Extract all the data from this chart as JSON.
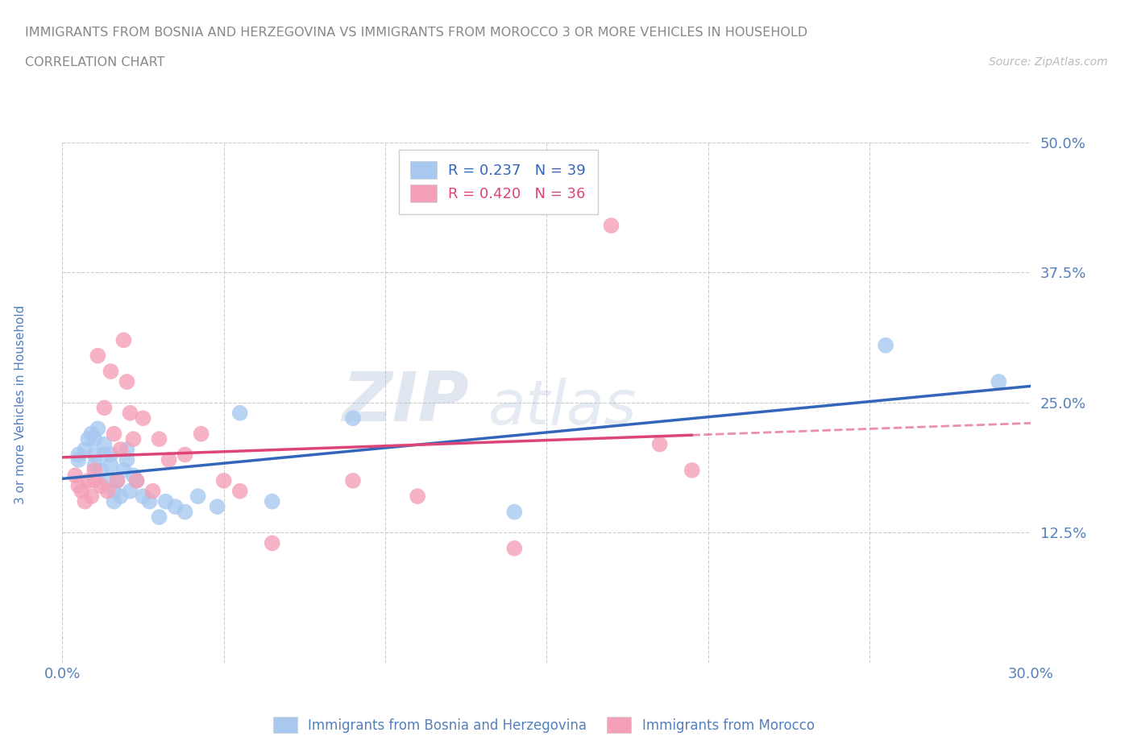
{
  "title_line1": "IMMIGRANTS FROM BOSNIA AND HERZEGOVINA VS IMMIGRANTS FROM MOROCCO 3 OR MORE VEHICLES IN HOUSEHOLD",
  "title_line2": "CORRELATION CHART",
  "source_text": "Source: ZipAtlas.com",
  "ylabel": "3 or more Vehicles in Household",
  "xlim": [
    0.0,
    0.3
  ],
  "ylim": [
    0.0,
    0.5
  ],
  "xticks": [
    0.0,
    0.05,
    0.1,
    0.15,
    0.2,
    0.25,
    0.3
  ],
  "xticklabels": [
    "0.0%",
    "",
    "",
    "",
    "",
    "",
    "30.0%"
  ],
  "yticks": [
    0.0,
    0.125,
    0.25,
    0.375,
    0.5
  ],
  "yticklabels": [
    "",
    "12.5%",
    "25.0%",
    "37.5%",
    "50.0%"
  ],
  "blue_color": "#A8C8F0",
  "pink_color": "#F4A0B8",
  "blue_line_color": "#3366BB",
  "pink_line_color": "#DD4477",
  "legend_R_blue": "R = 0.237",
  "legend_N_blue": "N = 39",
  "legend_R_pink": "R = 0.420",
  "legend_N_pink": "N = 36",
  "watermark_left": "ZIP",
  "watermark_right": "atlas",
  "blue_scatter_x": [
    0.005,
    0.005,
    0.007,
    0.008,
    0.009,
    0.01,
    0.01,
    0.01,
    0.011,
    0.012,
    0.013,
    0.013,
    0.014,
    0.015,
    0.015,
    0.016,
    0.016,
    0.017,
    0.018,
    0.019,
    0.02,
    0.02,
    0.021,
    0.022,
    0.023,
    0.025,
    0.027,
    0.03,
    0.032,
    0.035,
    0.038,
    0.042,
    0.048,
    0.055,
    0.065,
    0.09,
    0.14,
    0.255,
    0.29
  ],
  "blue_scatter_y": [
    0.2,
    0.195,
    0.205,
    0.215,
    0.22,
    0.19,
    0.2,
    0.215,
    0.225,
    0.185,
    0.2,
    0.21,
    0.175,
    0.19,
    0.2,
    0.155,
    0.165,
    0.175,
    0.16,
    0.185,
    0.195,
    0.205,
    0.165,
    0.18,
    0.175,
    0.16,
    0.155,
    0.14,
    0.155,
    0.15,
    0.145,
    0.16,
    0.15,
    0.24,
    0.155,
    0.235,
    0.145,
    0.305,
    0.27
  ],
  "pink_scatter_x": [
    0.004,
    0.005,
    0.006,
    0.007,
    0.008,
    0.009,
    0.01,
    0.01,
    0.011,
    0.012,
    0.013,
    0.014,
    0.015,
    0.016,
    0.017,
    0.018,
    0.019,
    0.02,
    0.021,
    0.022,
    0.023,
    0.025,
    0.028,
    0.03,
    0.033,
    0.038,
    0.043,
    0.05,
    0.055,
    0.065,
    0.09,
    0.11,
    0.14,
    0.17,
    0.185,
    0.195
  ],
  "pink_scatter_y": [
    0.18,
    0.17,
    0.165,
    0.155,
    0.175,
    0.16,
    0.185,
    0.175,
    0.295,
    0.17,
    0.245,
    0.165,
    0.28,
    0.22,
    0.175,
    0.205,
    0.31,
    0.27,
    0.24,
    0.215,
    0.175,
    0.235,
    0.165,
    0.215,
    0.195,
    0.2,
    0.22,
    0.175,
    0.165,
    0.115,
    0.175,
    0.16,
    0.11,
    0.42,
    0.21,
    0.185
  ],
  "grid_color": "#CCCCCC",
  "background_color": "#FFFFFF",
  "tick_color": "#5580BB",
  "ylabel_color": "#5580BB",
  "title_color": "#888888"
}
